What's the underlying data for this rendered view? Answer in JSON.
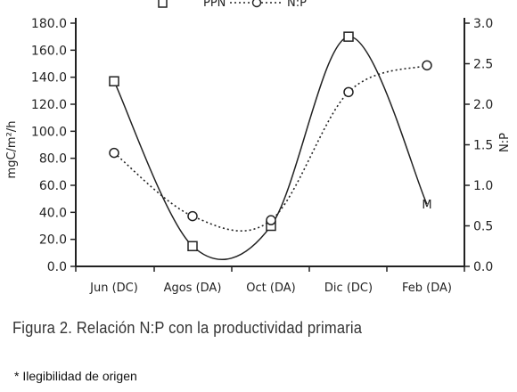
{
  "chart_data": {
    "type": "line",
    "categories": [
      "Jun (DC)",
      "Agos (DA)",
      "Oct (DA)",
      "Dic (DC)",
      "Feb (DA)"
    ],
    "ylabel": "mgC/m²/h",
    "y2label": "N:P",
    "ylim": [
      0,
      180
    ],
    "yticks": [
      "0.0",
      "20.0",
      "40.0",
      "60.0",
      "80.0",
      "100.0",
      "120.0",
      "140.0",
      "160.0",
      "180.0"
    ],
    "y2lim": [
      0,
      3
    ],
    "y2ticks": [
      "0.0",
      "0.5",
      "1.0",
      "1.5",
      "2.0",
      "2.5",
      "3.0"
    ],
    "legend": {
      "position": "top",
      "labels": [
        "PPN",
        "N:P"
      ]
    },
    "series": [
      {
        "name": "PPN",
        "axis": "left",
        "marker": "square",
        "style": "solid",
        "values": [
          137,
          15,
          30,
          170,
          46
        ]
      },
      {
        "name": "N:P",
        "axis": "right",
        "marker": "circle",
        "style": "dotted",
        "values": [
          1.4,
          0.62,
          0.57,
          2.15,
          2.48
        ]
      }
    ],
    "point_labels": [
      {
        "series": 0,
        "index": 4,
        "text": "M"
      }
    ]
  },
  "caption": "Figura 2. Relación N:P con la productividad primaria",
  "note": "* Ilegibilidad de origen"
}
